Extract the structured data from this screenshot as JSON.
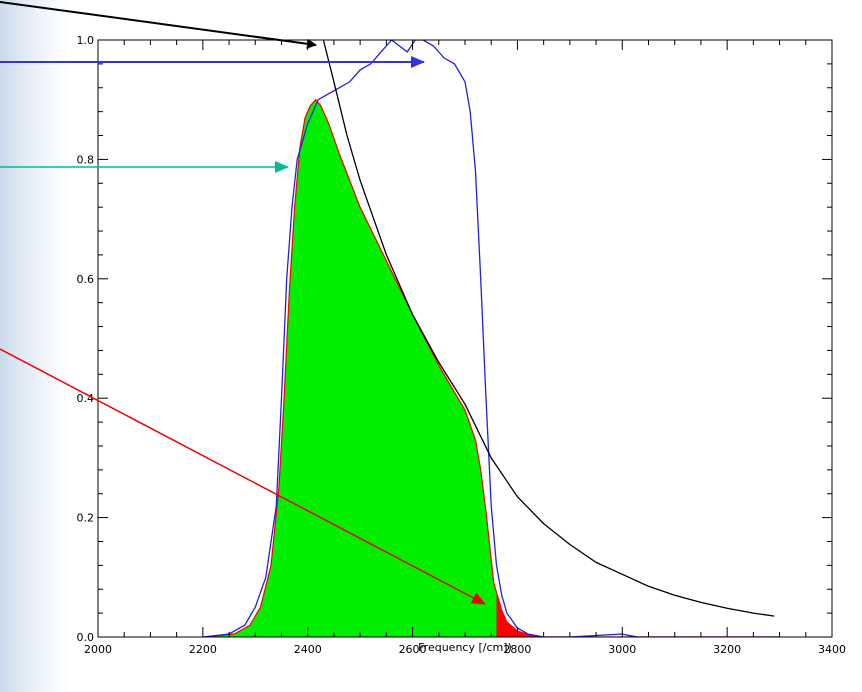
{
  "chart_data": {
    "type": "area",
    "xlabel": "Frequency [/cm])",
    "ylabel": "",
    "title": "",
    "xlim": [
      2000,
      3400
    ],
    "ylim": [
      0,
      1
    ],
    "x_ticks": [
      2000,
      2200,
      2400,
      2600,
      2800,
      3000,
      3200,
      3400
    ],
    "x_tick_labels": [
      "2000",
      "2200",
      "2400",
      "2600",
      "2800",
      "3000",
      "3200",
      "3400"
    ],
    "y_ticks": [
      0,
      0.2,
      0.4,
      0.6,
      0.8,
      1.0
    ],
    "y_tick_labels": [
      "0.0",
      "0.2",
      "0.4",
      "0.6",
      "0.8",
      "1.0"
    ],
    "grid": false,
    "colors": {
      "filter": "#2222dd",
      "planck": "#000000",
      "product_outline": "#ff0000",
      "product_fill_in_band": "#00ee00",
      "product_fill_out_of_band": "#ff0000",
      "arrow_black": "#000000",
      "arrow_blue": "#3333dd",
      "arrow_teal": "#00bb99",
      "arrow_red": "#ee0000"
    },
    "series": [
      {
        "style": "line",
        "color": "#2222dd",
        "x": [
          2200,
          2250,
          2280,
          2300,
          2320,
          2340,
          2350,
          2360,
          2370,
          2380,
          2400,
          2420,
          2440,
          2460,
          2480,
          2500,
          2520,
          2540,
          2560,
          2575,
          2590,
          2605,
          2620,
          2640,
          2660,
          2680,
          2700,
          2710,
          2720,
          2730,
          2740,
          2750,
          2760,
          2770,
          2780,
          2800,
          2820,
          2850,
          2900,
          3000,
          3010,
          3030,
          3100,
          3300
        ],
        "y": [
          0.0,
          0.005,
          0.02,
          0.05,
          0.1,
          0.22,
          0.4,
          0.6,
          0.72,
          0.8,
          0.86,
          0.9,
          0.91,
          0.92,
          0.93,
          0.95,
          0.96,
          0.98,
          1.0,
          0.99,
          0.98,
          1.0,
          1.0,
          0.99,
          0.97,
          0.96,
          0.93,
          0.88,
          0.78,
          0.6,
          0.4,
          0.22,
          0.12,
          0.07,
          0.04,
          0.015,
          0.005,
          0.0,
          0.0,
          0.005,
          0.003,
          0.0,
          0.0,
          0.0
        ]
      },
      {
        "style": "line",
        "color": "#000000",
        "x": [
          2430,
          2450,
          2475,
          2500,
          2550,
          2600,
          2650,
          2700,
          2750,
          2800,
          2850,
          2900,
          2950,
          3000,
          3050,
          3100,
          3150,
          3200,
          3250,
          3290
        ],
        "y": [
          1.0,
          0.93,
          0.84,
          0.765,
          0.64,
          0.54,
          0.46,
          0.39,
          0.3,
          0.235,
          0.19,
          0.155,
          0.125,
          0.105,
          0.085,
          0.07,
          0.058,
          0.048,
          0.04,
          0.035
        ]
      },
      {
        "style": "filled",
        "color": "#ff0000",
        "fill_in_band": "#00ee00",
        "fill_out_of_band": "#ff0000",
        "in_band_max_x": 2760,
        "x": [
          2200,
          2260,
          2290,
          2310,
          2330,
          2345,
          2355,
          2365,
          2375,
          2385,
          2395,
          2405,
          2415,
          2425,
          2440,
          2460,
          2500,
          2550,
          2600,
          2650,
          2700,
          2720,
          2730,
          2740,
          2750,
          2755,
          2760,
          2770,
          2780,
          2800,
          2820,
          2840,
          2900,
          3300
        ],
        "y": [
          0.0,
          0.005,
          0.02,
          0.05,
          0.12,
          0.25,
          0.4,
          0.58,
          0.72,
          0.82,
          0.87,
          0.89,
          0.9,
          0.89,
          0.86,
          0.81,
          0.72,
          0.63,
          0.54,
          0.455,
          0.38,
          0.33,
          0.28,
          0.21,
          0.13,
          0.09,
          0.075,
          0.045,
          0.025,
          0.01,
          0.004,
          0.0,
          0.0,
          0.0
        ]
      }
    ]
  }
}
